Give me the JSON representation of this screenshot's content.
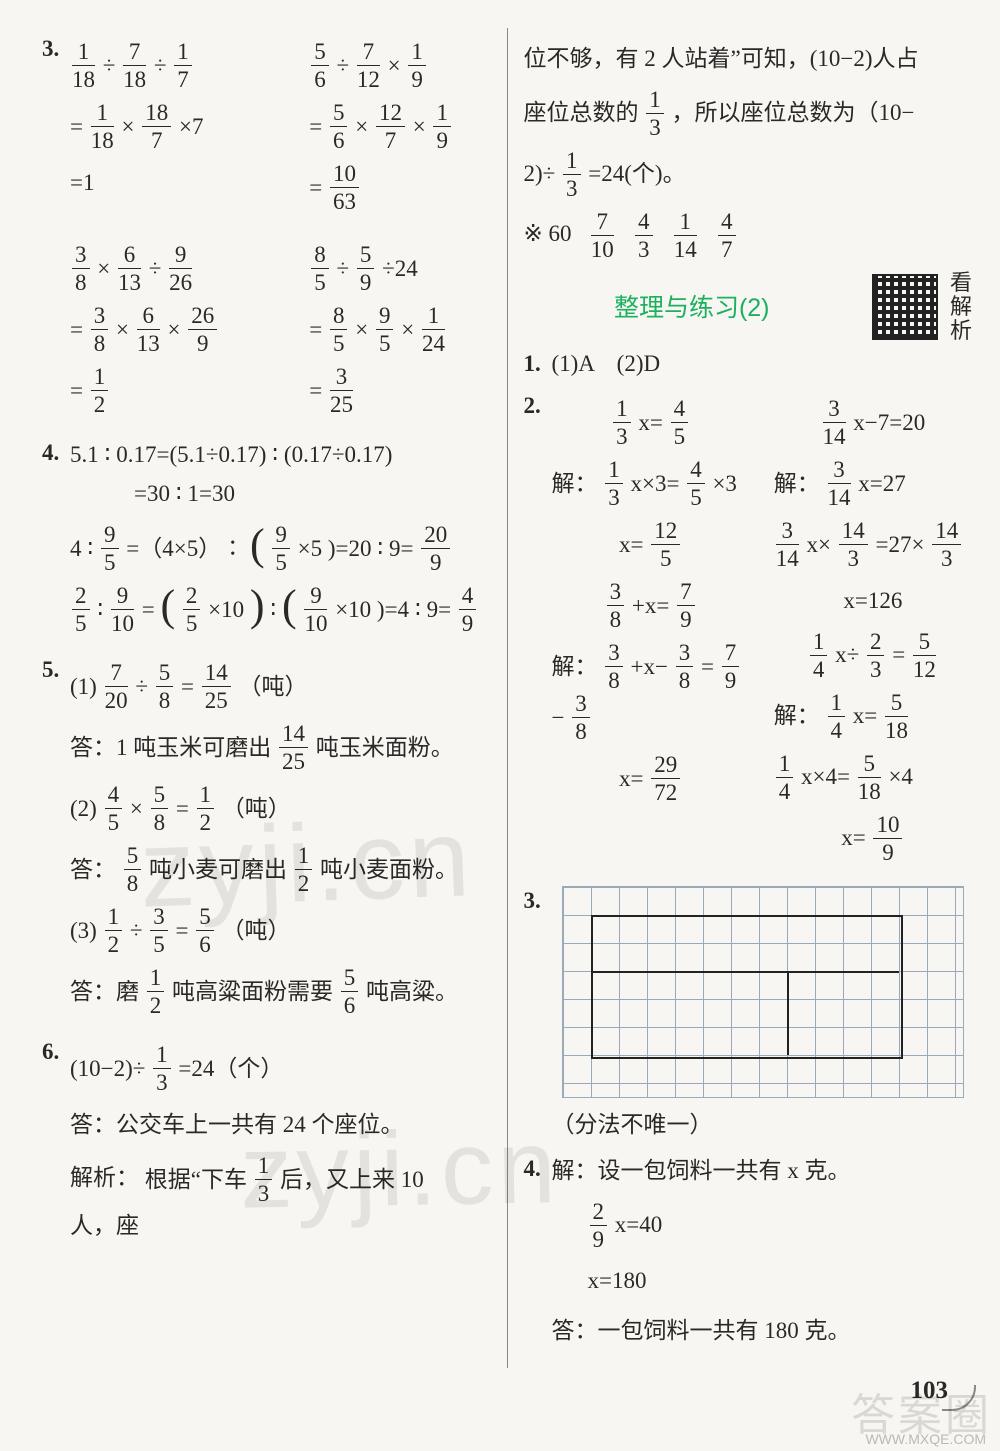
{
  "page_number": "103",
  "watermarks": {
    "wm1": "zyji.cn",
    "wm2": "zyji.cn"
  },
  "corner_stamp": {
    "big": "答案圈",
    "url": "WWW.MXQE.COM"
  },
  "qr_label": {
    "l1": "看",
    "l2": "解",
    "l3": "析"
  },
  "left": {
    "q3": {
      "num": "3.",
      "pair1": {
        "a1": "1|18 ÷ 7|18 ÷ 1|7",
        "a2": "= 1|18 × 18|7 ×7",
        "a3": "=1",
        "b1": "5|6 ÷ 7|12 × 1|9",
        "b2": "= 5|6 × 12|7 × 1|9",
        "b3": "= 10|63"
      },
      "pair2": {
        "a1": "3|8 × 6|13 ÷ 9|26",
        "a2": "= 3|8 × 6|13 × 26|9",
        "a3": "= 1|2",
        "b1": "8|5 ÷ 5|9 ÷24",
        "b2": "= 8|5 × 9|5 × 1|24",
        "b3": "= 3|25"
      }
    },
    "q4": {
      "num": "4.",
      "l1a": "5.1 ∶ 0.17=(5.1÷0.17) ∶ (0.17÷0.17)",
      "l1b": "=30 ∶ 1=30",
      "l2": "4 ∶ 9|5 =（4×5）∶ ( 9|5 ×5 )=20 ∶ 9= 20|9",
      "l3": "2|5 ∶ 9|10 = ( 2|5 ×10 ) ∶ ( 9|10 ×10 )=4 ∶ 9= 4|9"
    },
    "q5": {
      "num": "5.",
      "p1": {
        "expr": "(1) 7|20 ÷ 5|8 = 14|25 （吨）",
        "ans": "答：1 吨玉米可磨出 14|25 吨玉米面粉。"
      },
      "p2": {
        "expr": "(2) 4|5 × 5|8 = 1|2 （吨）",
        "ans": "答： 5|8 吨小麦可磨出 1|2 吨小麦面粉。"
      },
      "p3": {
        "expr": "(3) 1|2 ÷ 3|5 = 5|6 （吨）",
        "ans": "答：磨 1|2 吨高粱面粉需要 5|6 吨高粱。"
      }
    },
    "q6": {
      "num": "6.",
      "expr": "(10−2)÷ 1|3 =24（个）",
      "ans": "答：公交车上一共有 24 个座位。",
      "expl_label": "解析：",
      "expl": "根据“下车 1|3 后，又上来 10 人，座"
    }
  },
  "right": {
    "cont1": "位不够，有 2 人站着”可知，(10−2)人占",
    "cont2": "座位总数的 1|3 ，所以座位总数为（10−",
    "cont3": "2)÷ 1|3 =24(个)。",
    "star": {
      "lead": "※ 60",
      "f1": "7|10",
      "f2": "4|3",
      "f3": "1|14",
      "f4": "4|7"
    },
    "section": "整理与练习(2)",
    "q1": {
      "num": "1.",
      "text": "(1)A　(2)D"
    },
    "q2": {
      "num": "2.",
      "colA": [
        "1|3 x= 4|5",
        "解： 1|3 x×3= 4|5 ×3",
        "x= 12|5",
        "3|8 +x= 7|9",
        "解： 3|8 +x− 3|8 = 7|9 − 3|8",
        "x= 29|72"
      ],
      "colB": [
        "3|14 x−7=20",
        "解： 3|14 x=27",
        "3|14 x× 14|3 =27× 14|3",
        "x=126",
        "1|4 x÷ 2|3 = 5|12",
        "解： 1|4 x= 5|18",
        "1|4 x×4= 5|18 ×4",
        "x= 10|9"
      ]
    },
    "q3": {
      "num": "3.",
      "note": "（分法不唯一）"
    },
    "q4": {
      "num": "4.",
      "l1": "解：设一包饲料一共有 x 克。",
      "l2": "2|9 x=40",
      "l3": "x=180",
      "ans": "答：一包饲料一共有 180 克。"
    }
  }
}
